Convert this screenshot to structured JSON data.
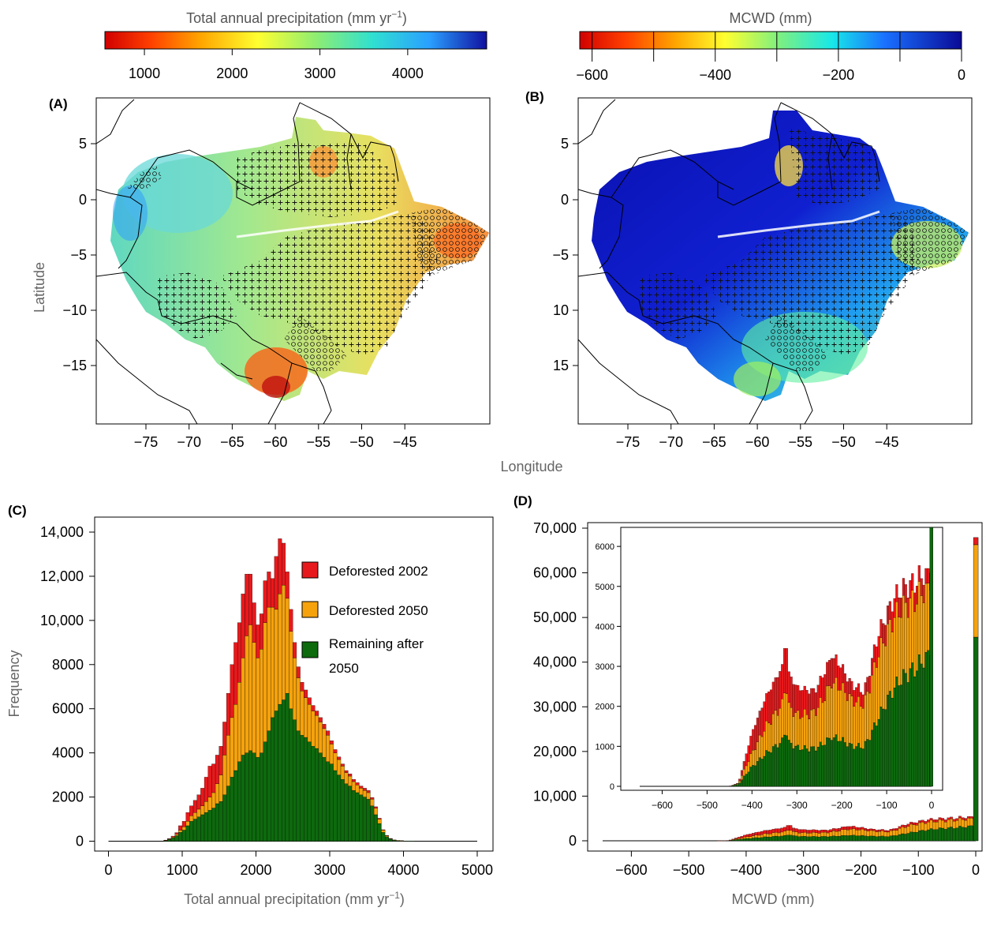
{
  "panels": {
    "A": {
      "label": "(A)",
      "colorbar_title": "Total annual precipitation (mm yr",
      "colorbar_sup": "−1",
      "colorbar_close": ")",
      "colorbar_ticks": [
        "1000",
        "2000",
        "3000",
        "4000"
      ]
    },
    "B": {
      "label": "(B)",
      "colorbar_title": "MCWD (mm)",
      "colorbar_ticks": [
        "−600",
        "−400",
        "−200",
        "0"
      ]
    },
    "C": {
      "label": "(C)"
    },
    "D": {
      "label": "(D)"
    }
  },
  "maps": {
    "xlabel": "Longitude",
    "ylabel": "Latitude",
    "lon_ticks": [
      "−75",
      "−70",
      "−65",
      "−60",
      "−55",
      "−50",
      "−45"
    ],
    "lat_ticks_A": [
      "5",
      "0",
      "−5",
      "−10",
      "−15"
    ],
    "lat_ticks_B": [
      "5",
      "0",
      "−5",
      "10",
      "15"
    ]
  },
  "colors": {
    "deforested_2002": "#e8191c",
    "deforested_2050": "#f5a20d",
    "remaining": "#0d6a0d"
  },
  "legend": {
    "items": [
      {
        "label": "Deforested 2002",
        "color": "#e8191c"
      },
      {
        "label": "Deforested 2050",
        "color": "#f5a20d"
      },
      {
        "label": "Remaining after",
        "label2": "2050",
        "color": "#0d6a0d"
      }
    ]
  },
  "chart_data": [
    {
      "panel": "C",
      "type": "bar",
      "stacked": true,
      "xlabel": "Total annual precipitation (mm yr",
      "xlabel_sup": "−1",
      "xlabel_close": ")",
      "ylabel": "Frequency",
      "xlim": [
        0,
        5000
      ],
      "ylim": [
        0,
        14000
      ],
      "x_ticks": [
        "0",
        "1000",
        "2000",
        "3000",
        "4000",
        "5000"
      ],
      "y_ticks": [
        "0",
        "2000",
        "4000",
        "6000",
        "8000",
        "10,000",
        "12,000",
        "14,000"
      ],
      "bin_width": 50,
      "x": [
        0,
        50,
        100,
        150,
        200,
        250,
        300,
        350,
        400,
        450,
        500,
        550,
        600,
        650,
        700,
        750,
        800,
        850,
        900,
        950,
        1000,
        1050,
        1100,
        1150,
        1200,
        1250,
        1300,
        1350,
        1400,
        1450,
        1500,
        1550,
        1600,
        1650,
        1700,
        1750,
        1800,
        1850,
        1900,
        1950,
        2000,
        2050,
        2100,
        2150,
        2200,
        2250,
        2300,
        2350,
        2400,
        2450,
        2500,
        2550,
        2600,
        2650,
        2700,
        2750,
        2800,
        2850,
        2900,
        2950,
        3000,
        3050,
        3100,
        3150,
        3200,
        3250,
        3300,
        3350,
        3400,
        3450,
        3500,
        3550,
        3600,
        3650,
        3700,
        3750,
        3800,
        3850,
        3900,
        3950,
        4000,
        4050,
        4100,
        4150,
        4200,
        4250,
        4300,
        4350,
        4400,
        4450,
        4500,
        4550,
        4600,
        4650,
        4700,
        4750,
        4800,
        4850,
        4900,
        4950
      ],
      "series": [
        {
          "name": "Remaining after 2050",
          "values": [
            0,
            0,
            0,
            0,
            0,
            0,
            0,
            0,
            0,
            0,
            0,
            0,
            0,
            0,
            0,
            30,
            80,
            150,
            250,
            400,
            500,
            700,
            900,
            1000,
            1100,
            1200,
            1300,
            1400,
            1500,
            1700,
            1800,
            2100,
            2500,
            2900,
            3200,
            3600,
            3900,
            4000,
            4100,
            4000,
            3800,
            4000,
            4500,
            5000,
            5600,
            5900,
            6200,
            6400,
            6700,
            6000,
            5500,
            5000,
            4800,
            4700,
            4500,
            4300,
            4200,
            4000,
            3800,
            3600,
            3500,
            3200,
            3000,
            2800,
            2600,
            2500,
            2300,
            2200,
            2100,
            2000,
            1900,
            1600,
            1200,
            800,
            400,
            200,
            100,
            50,
            30,
            20,
            10,
            10,
            5,
            0,
            0,
            0,
            0,
            0,
            0,
            0,
            0,
            0,
            0,
            0,
            0,
            0,
            0,
            0,
            0,
            0
          ]
        },
        {
          "name": "Deforested 2050",
          "values": [
            0,
            0,
            0,
            0,
            0,
            0,
            0,
            0,
            0,
            0,
            0,
            0,
            0,
            0,
            0,
            10,
            20,
            40,
            60,
            100,
            150,
            200,
            250,
            300,
            350,
            400,
            500,
            600,
            700,
            900,
            1200,
            1800,
            2300,
            2700,
            3000,
            3600,
            4400,
            5300,
            5700,
            5000,
            4500,
            4700,
            5400,
            5600,
            5000,
            4600,
            5000,
            5200,
            4300,
            3500,
            2800,
            2400,
            2000,
            1800,
            1700,
            1600,
            1500,
            1400,
            1300,
            1200,
            900,
            800,
            700,
            600,
            500,
            450,
            400,
            350,
            300,
            300,
            300,
            300,
            300,
            200,
            100,
            50,
            20,
            10,
            5,
            5,
            0,
            0,
            0,
            0,
            0,
            0,
            0,
            0,
            0,
            0,
            0,
            0,
            0,
            0,
            0,
            0,
            0,
            0,
            0,
            0
          ]
        },
        {
          "name": "Deforested 2002",
          "values": [
            0,
            0,
            0,
            0,
            0,
            0,
            0,
            0,
            0,
            0,
            0,
            0,
            0,
            0,
            0,
            10,
            20,
            40,
            80,
            200,
            250,
            400,
            450,
            550,
            650,
            800,
            1100,
            1400,
            1300,
            1300,
            1300,
            1500,
            1900,
            2400,
            2800,
            2700,
            2900,
            2800,
            2300,
            1800,
            1500,
            1600,
            1900,
            1600,
            1300,
            2400,
            2500,
            1900,
            1200,
            1000,
            700,
            500,
            400,
            350,
            300,
            250,
            200,
            200,
            200,
            200,
            150,
            150,
            120,
            100,
            100,
            100,
            100,
            100,
            100,
            100,
            100,
            80,
            60,
            40,
            20,
            10,
            5,
            0,
            0,
            0,
            0,
            0,
            0,
            0,
            0,
            0,
            0,
            0,
            0,
            0,
            0,
            0,
            0,
            0,
            0,
            0,
            0,
            0,
            0,
            0
          ]
        }
      ]
    },
    {
      "panel": "D",
      "type": "bar",
      "stacked": true,
      "xlabel": "MCWD (mm)",
      "xlim": [
        -650,
        0
      ],
      "ylim": [
        0,
        70000
      ],
      "x_ticks": [
        "−600",
        "−500",
        "−400",
        "−300",
        "−200",
        "−100",
        "0"
      ],
      "y_ticks": [
        "0",
        "10,000",
        "20,000",
        "30,000",
        "40,000",
        "50,000",
        "60,000",
        "70,000"
      ],
      "bin_width": 5,
      "last_bin": {
        "x": 0,
        "remaining": 45600,
        "deforested_2050": 20700,
        "deforested_2002": 1600
      },
      "inset": {
        "xlim": [
          -650,
          0
        ],
        "ylim": [
          0,
          6200
        ],
        "x_ticks": [
          "−600",
          "−500",
          "−400",
          "−300",
          "−200",
          "−100",
          "0"
        ],
        "y_ticks": [
          "0",
          "1000",
          "2000",
          "3000",
          "4000",
          "5000",
          "6000"
        ]
      },
      "anchors_remaining": [
        [
          -650,
          0
        ],
        [
          -450,
          0
        ],
        [
          -430,
          50
        ],
        [
          -400,
          500
        ],
        [
          -370,
          850
        ],
        [
          -330,
          1100
        ],
        [
          -300,
          950
        ],
        [
          -260,
          1000
        ],
        [
          -220,
          1200
        ],
        [
          -180,
          1000
        ],
        [
          -150,
          1050
        ],
        [
          -120,
          1700
        ],
        [
          -80,
          2400
        ],
        [
          -50,
          2900
        ],
        [
          -20,
          3300
        ],
        [
          -5,
          3600
        ]
      ],
      "anchors_deforested_2050": [
        [
          -650,
          0
        ],
        [
          -450,
          0
        ],
        [
          -430,
          20
        ],
        [
          -400,
          350
        ],
        [
          -370,
          700
        ],
        [
          -330,
          900
        ],
        [
          -300,
          800
        ],
        [
          -260,
          950
        ],
        [
          -220,
          1350
        ],
        [
          -180,
          1150
        ],
        [
          -150,
          1100
        ],
        [
          -120,
          1600
        ],
        [
          -80,
          1700
        ],
        [
          -50,
          1750
        ],
        [
          -20,
          1800
        ],
        [
          -5,
          1750
        ]
      ],
      "anchors_deforested_2002": [
        [
          -650,
          0
        ],
        [
          -450,
          0
        ],
        [
          -430,
          10
        ],
        [
          -400,
          500
        ],
        [
          -370,
          700
        ],
        [
          -330,
          1000
        ],
        [
          -300,
          700
        ],
        [
          -260,
          500
        ],
        [
          -220,
          700
        ],
        [
          -180,
          400
        ],
        [
          -150,
          300
        ],
        [
          -120,
          500
        ],
        [
          -80,
          500
        ],
        [
          -50,
          450
        ],
        [
          -20,
          400
        ],
        [
          -5,
          400
        ]
      ],
      "peaks": [
        {
          "x": -325,
          "total": 3450
        },
        {
          "x": -220,
          "total": 3200
        },
        {
          "x": -10,
          "total": 5450
        }
      ]
    }
  ]
}
